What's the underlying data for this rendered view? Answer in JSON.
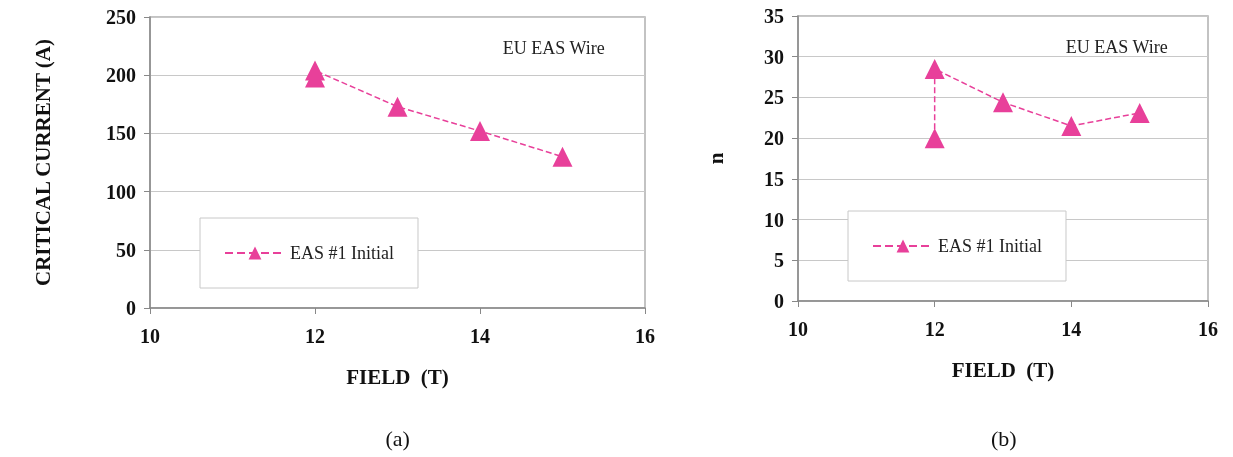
{
  "chart_data": [
    {
      "type": "line",
      "xlabel": "FIELD  (T)",
      "ylabel": "CRITICAL CURRENT (A)",
      "annotations": [
        "EU EAS Wire",
        "(a)"
      ],
      "series": [
        {
          "name": "EAS #1 Initial",
          "color": "#e8409a",
          "x": [
            12,
            12,
            13,
            14,
            15
          ],
          "values": [
            198,
            204,
            173,
            152,
            130
          ]
        }
      ],
      "xlim": [
        10,
        16
      ],
      "xticks": [
        10,
        12,
        14,
        16
      ],
      "ylim": [
        0,
        250
      ],
      "yticks": [
        0,
        50,
        100,
        150,
        200,
        250
      ],
      "grid": "y",
      "legend": "bottom left",
      "marker": "triangle",
      "line_style": "dashed"
    },
    {
      "type": "line",
      "xlabel": "FIELD  (T)",
      "ylabel": "n",
      "annotations": [
        "EU EAS Wire",
        "(b)"
      ],
      "series": [
        {
          "name": "EAS #1 Initial",
          "color": "#e8409a",
          "x": [
            12,
            12,
            13,
            14,
            15
          ],
          "values": [
            20,
            28.5,
            24.4,
            21.5,
            23.1
          ]
        }
      ],
      "xlim": [
        10,
        16
      ],
      "xticks": [
        10,
        12,
        14,
        16
      ],
      "ylim": [
        0,
        35
      ],
      "yticks": [
        0,
        5,
        10,
        15,
        20,
        25,
        30,
        35
      ],
      "grid": "y",
      "legend": "bottom left",
      "marker": "triangle",
      "line_style": "dashed"
    }
  ]
}
